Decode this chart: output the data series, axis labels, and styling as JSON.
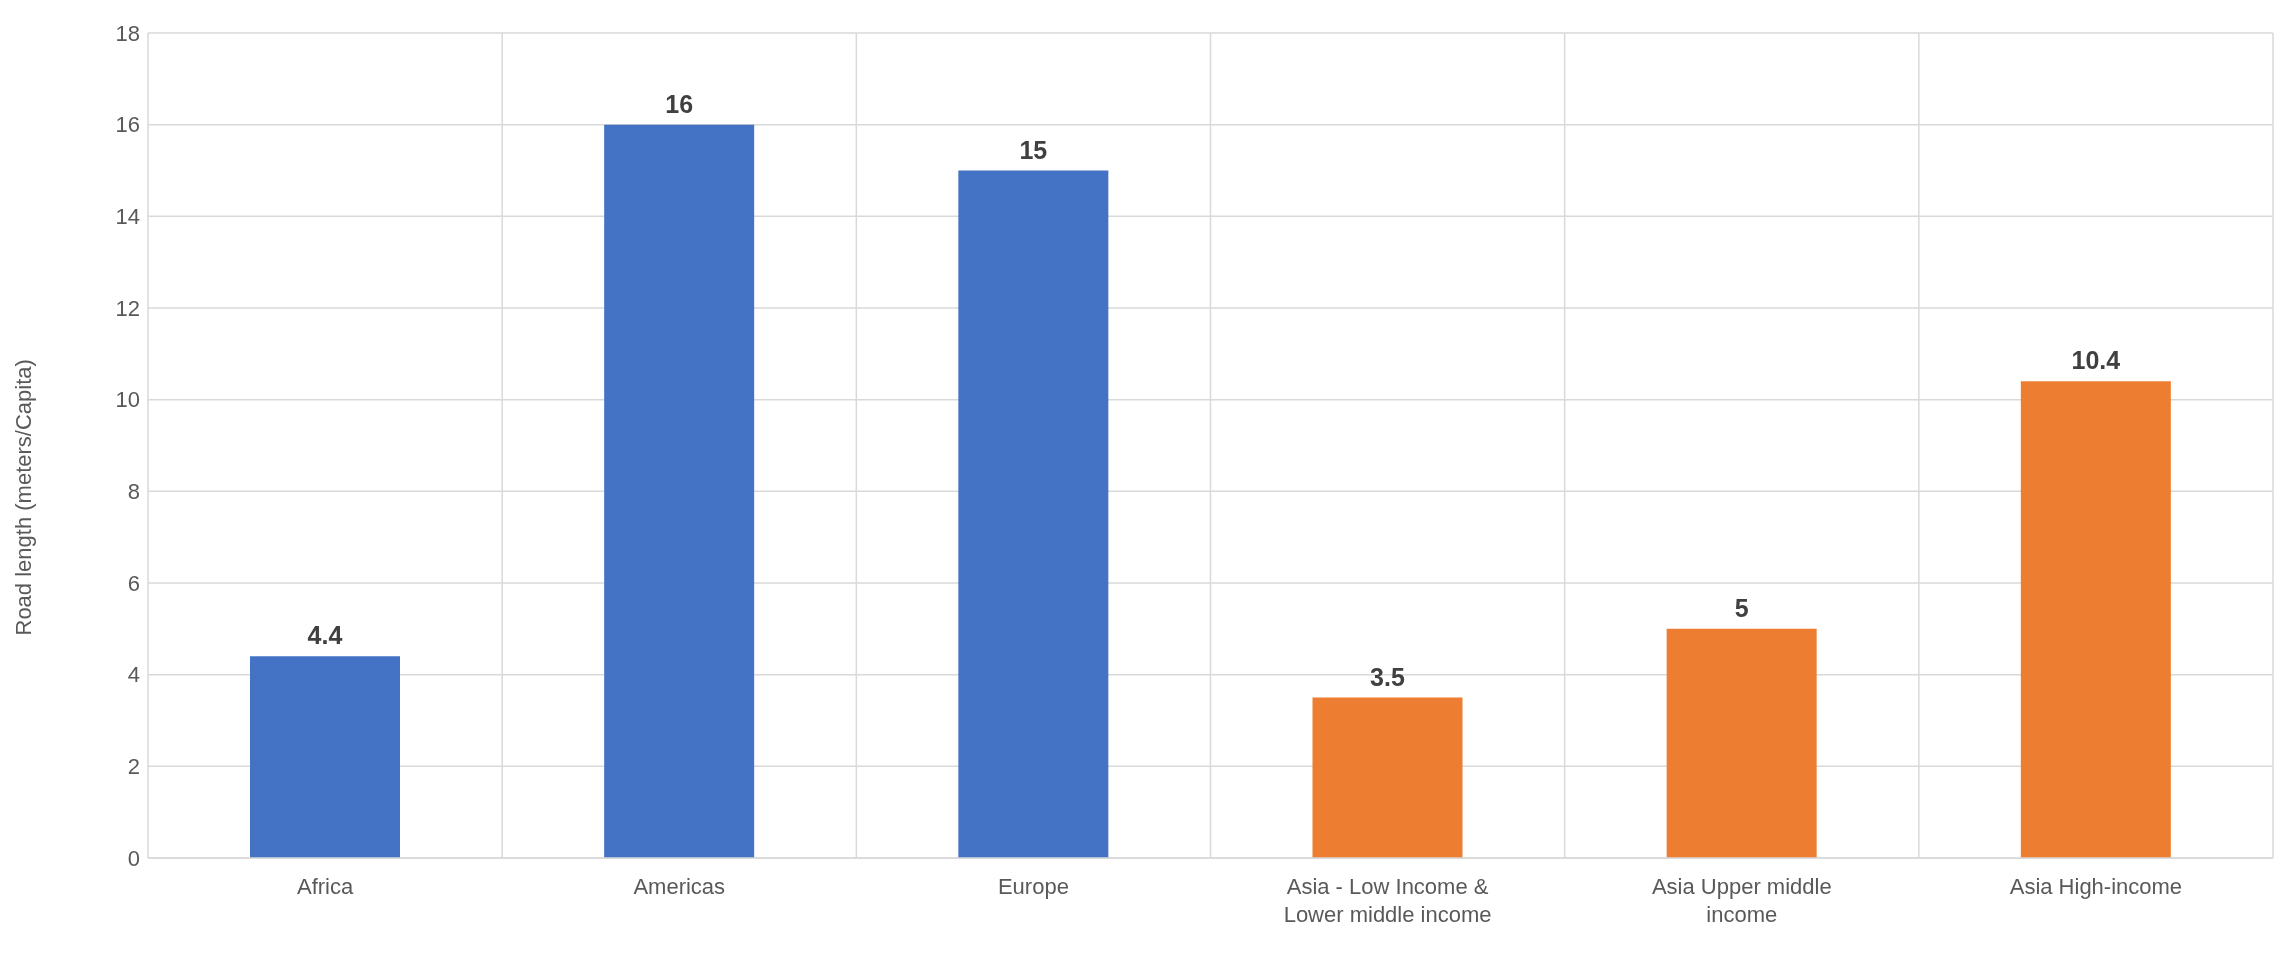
{
  "chart_data": {
    "type": "bar",
    "ylabel": "Road length (meters/Capita)",
    "categories": [
      "Africa",
      "Americas",
      "Europe",
      "Asia - Low Income & Lower middle income",
      "Asia Upper middle income",
      "Asia High-income"
    ],
    "values": [
      4.4,
      16,
      15,
      3.5,
      5,
      10.4
    ],
    "colors": [
      "#4472c4",
      "#4472c4",
      "#4472c4",
      "#ed7d31",
      "#ed7d31",
      "#ed7d31"
    ],
    "ylim": [
      0,
      18
    ],
    "yticks": [
      0,
      2,
      4,
      6,
      8,
      10,
      12,
      14,
      16,
      18
    ],
    "grid": true,
    "data_labels": true
  }
}
